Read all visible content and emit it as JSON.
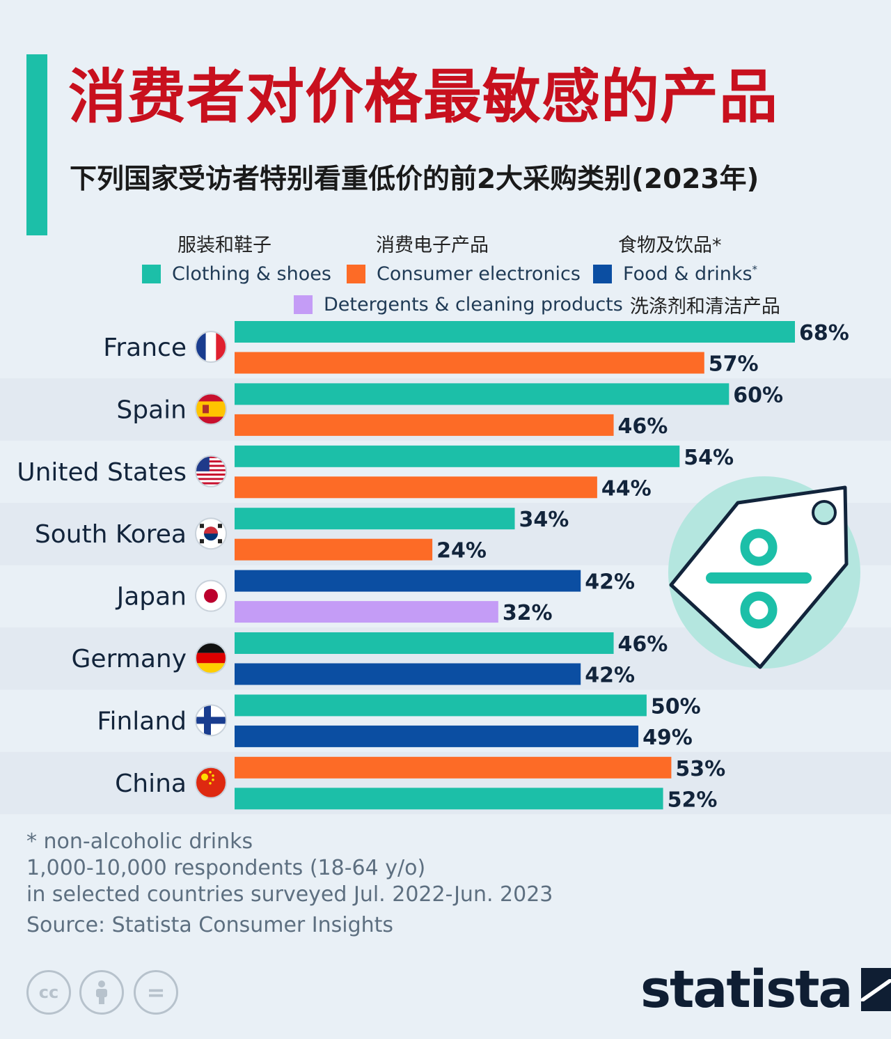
{
  "title": "消费者对价格最敏感的产品",
  "subtitle": "下列国家受访者特别看重低价的前2大采购类别(2023年)",
  "legend": {
    "clothing_cn": "服装和鞋子",
    "electronics_cn": "消费电子产品",
    "food_cn": "食物及饮品*",
    "clothing": "Clothing & shoes",
    "electronics": "Consumer electronics",
    "food": "Food & drinks",
    "food_mark": "*",
    "detergents": "Detergents & cleaning products",
    "detergents_cn": "洗涤剂和清洁产品"
  },
  "colors": {
    "clothing": "#1cbfa8",
    "electronics": "#fd6b26",
    "food": "#0b4ea2",
    "detergents": "#c49cf6",
    "value_text": "#12243b",
    "band": "#e2e9f1",
    "background": "#e9f0f6"
  },
  "chart_data": {
    "type": "bar",
    "orientation": "horizontal",
    "unit": "%",
    "xlim": [
      0,
      68
    ],
    "categories": [
      "France",
      "Spain",
      "United States",
      "South Korea",
      "Japan",
      "Germany",
      "Finland",
      "China"
    ],
    "bars": [
      [
        {
          "series": "clothing",
          "value": 68
        },
        {
          "series": "electronics",
          "value": 57
        }
      ],
      [
        {
          "series": "clothing",
          "value": 60
        },
        {
          "series": "electronics",
          "value": 46
        }
      ],
      [
        {
          "series": "clothing",
          "value": 54
        },
        {
          "series": "electronics",
          "value": 44
        }
      ],
      [
        {
          "series": "clothing",
          "value": 34
        },
        {
          "series": "electronics",
          "value": 24
        }
      ],
      [
        {
          "series": "food",
          "value": 42
        },
        {
          "series": "detergents",
          "value": 32
        }
      ],
      [
        {
          "series": "clothing",
          "value": 46
        },
        {
          "series": "food",
          "value": 42
        }
      ],
      [
        {
          "series": "clothing",
          "value": 50
        },
        {
          "series": "food",
          "value": 49
        }
      ],
      [
        {
          "series": "electronics",
          "value": 53
        },
        {
          "series": "clothing",
          "value": 52
        }
      ]
    ],
    "flags": [
      "france",
      "spain",
      "usa",
      "korea",
      "japan",
      "germany",
      "finland",
      "china"
    ],
    "grid": false,
    "legend_position": "top"
  },
  "footnotes": {
    "line1": "* non-alcoholic drinks",
    "line2": "1,000-10,000 respondents (18-64 y/o)",
    "line3": "in selected countries surveyed Jul. 2022-Jun. 2023",
    "source": "Source: Statista Consumer Insights"
  },
  "license_icons": [
    "cc-icon",
    "attribution-icon",
    "no-derivatives-icon"
  ],
  "cc_label": "cc",
  "equal_label": "=",
  "logo": "statista"
}
